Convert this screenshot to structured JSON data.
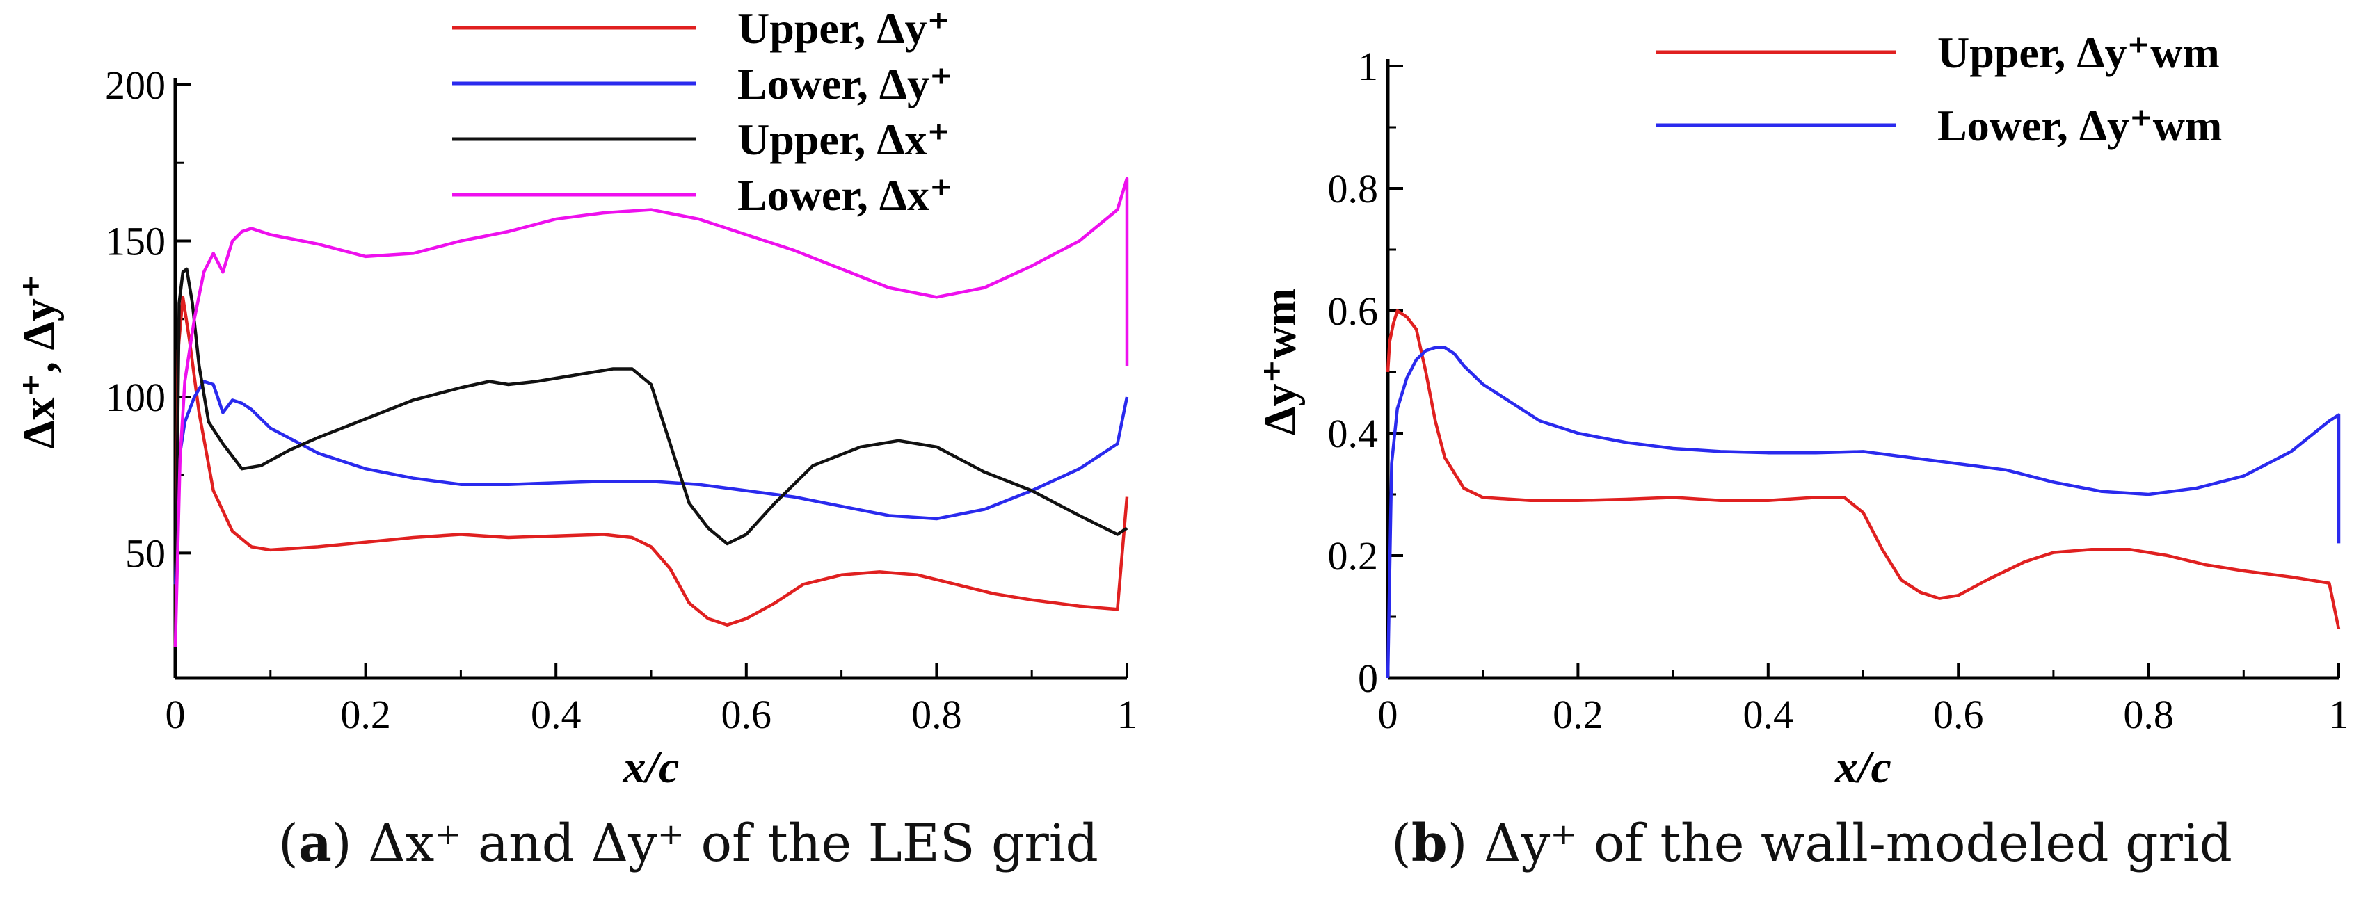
{
  "captions": {
    "a": {
      "tag": "a",
      "text": "Δx⁺ and Δy⁺ of the LES grid"
    },
    "b": {
      "tag": "b",
      "text": "Δy⁺ of the wall-modeled grid"
    }
  },
  "chart_data": [
    {
      "panel": "a",
      "type": "line",
      "xlabel": "x/c",
      "ylabel": "Δx⁺, Δy⁺",
      "xlim": [
        0,
        1
      ],
      "ylim": [
        10,
        200
      ],
      "xticks": [
        "0",
        "0.2",
        "0.4",
        "0.6",
        "0.8",
        "1"
      ],
      "xtick_values": [
        0,
        0.2,
        0.4,
        0.6,
        0.8,
        1
      ],
      "yticks": [
        "50",
        "100",
        "150",
        "200"
      ],
      "ytick_values": [
        50,
        100,
        150,
        200
      ],
      "legend_position": "top-center",
      "series": [
        {
          "name": "Upper, Δy⁺",
          "color": "#e02020",
          "x": [
            0,
            0.003,
            0.008,
            0.015,
            0.025,
            0.04,
            0.06,
            0.08,
            0.1,
            0.15,
            0.2,
            0.25,
            0.3,
            0.35,
            0.4,
            0.45,
            0.48,
            0.5,
            0.52,
            0.54,
            0.56,
            0.58,
            0.6,
            0.63,
            0.66,
            0.7,
            0.74,
            0.78,
            0.82,
            0.86,
            0.9,
            0.95,
            0.99,
            1.0
          ],
          "y": [
            20,
            115,
            132,
            118,
            95,
            70,
            57,
            52,
            51,
            52,
            53.5,
            55,
            56,
            55,
            55.5,
            56,
            55,
            52,
            45,
            34,
            29,
            27,
            29,
            34,
            40,
            43,
            44,
            43,
            40,
            37,
            35,
            33,
            32,
            68
          ]
        },
        {
          "name": "Lower, Δy⁺",
          "color": "#2a2aee",
          "x": [
            0,
            0.005,
            0.01,
            0.02,
            0.03,
            0.04,
            0.05,
            0.06,
            0.07,
            0.08,
            0.1,
            0.15,
            0.2,
            0.25,
            0.3,
            0.35,
            0.4,
            0.45,
            0.5,
            0.55,
            0.6,
            0.65,
            0.7,
            0.75,
            0.8,
            0.85,
            0.9,
            0.95,
            0.99,
            1.0
          ],
          "y": [
            40,
            82,
            92,
            100,
            105,
            104,
            95,
            99,
            98,
            96,
            90,
            82,
            77,
            74,
            72,
            72,
            72.5,
            73,
            73,
            72,
            70,
            68,
            65,
            62,
            61,
            64,
            70,
            77,
            85,
            100
          ]
        },
        {
          "name": "Upper, Δx⁺",
          "color": "#111111",
          "x": [
            0,
            0.004,
            0.008,
            0.012,
            0.018,
            0.025,
            0.035,
            0.05,
            0.07,
            0.09,
            0.12,
            0.15,
            0.2,
            0.25,
            0.3,
            0.33,
            0.35,
            0.38,
            0.42,
            0.46,
            0.48,
            0.5,
            0.52,
            0.54,
            0.56,
            0.58,
            0.6,
            0.63,
            0.67,
            0.72,
            0.76,
            0.8,
            0.85,
            0.9,
            0.95,
            0.99,
            1.0
          ],
          "y": [
            20,
            130,
            140,
            141,
            130,
            110,
            92,
            85,
            77,
            78,
            83,
            87,
            93,
            99,
            103,
            105,
            104,
            105,
            107,
            109,
            109,
            104,
            85,
            66,
            58,
            53,
            56,
            66,
            78,
            84,
            86,
            84,
            76,
            70,
            62,
            56,
            58
          ]
        },
        {
          "name": "Lower, Δx⁺",
          "color": "#ee10ee",
          "x": [
            0,
            0.005,
            0.01,
            0.02,
            0.03,
            0.04,
            0.05,
            0.055,
            0.06,
            0.07,
            0.08,
            0.1,
            0.15,
            0.2,
            0.25,
            0.3,
            0.35,
            0.4,
            0.45,
            0.5,
            0.55,
            0.6,
            0.65,
            0.7,
            0.75,
            0.8,
            0.85,
            0.9,
            0.95,
            0.99,
            1.0,
            1.0
          ],
          "y": [
            20,
            80,
            105,
            125,
            140,
            146,
            140,
            145,
            150,
            153,
            154,
            152,
            149,
            145,
            146,
            150,
            153,
            157,
            159,
            160,
            157,
            152,
            147,
            141,
            135,
            132,
            135,
            142,
            150,
            160,
            170,
            110
          ]
        }
      ]
    },
    {
      "panel": "b",
      "type": "line",
      "xlabel": "x/c",
      "ylabel": "Δy⁺wm",
      "xlim": [
        0,
        1
      ],
      "ylim": [
        0,
        1
      ],
      "xticks": [
        "0",
        "0.2",
        "0.4",
        "0.6",
        "0.8",
        "1"
      ],
      "xtick_values": [
        0,
        0.2,
        0.4,
        0.6,
        0.8,
        1
      ],
      "yticks": [
        "0",
        "0.2",
        "0.4",
        "0.6",
        "0.8",
        "1"
      ],
      "ytick_values": [
        0,
        0.2,
        0.4,
        0.6,
        0.8,
        1
      ],
      "legend_position": "top-right",
      "series": [
        {
          "name": "Upper, Δy⁺wm",
          "color": "#e02020",
          "x": [
            0,
            0.002,
            0.006,
            0.01,
            0.02,
            0.03,
            0.04,
            0.05,
            0.06,
            0.08,
            0.1,
            0.15,
            0.2,
            0.25,
            0.3,
            0.35,
            0.4,
            0.45,
            0.48,
            0.5,
            0.52,
            0.54,
            0.56,
            0.58,
            0.6,
            0.63,
            0.67,
            0.7,
            0.74,
            0.78,
            0.82,
            0.86,
            0.9,
            0.95,
            0.99,
            1.0
          ],
          "y": [
            0.5,
            0.55,
            0.58,
            0.6,
            0.59,
            0.57,
            0.5,
            0.42,
            0.36,
            0.31,
            0.295,
            0.29,
            0.29,
            0.292,
            0.295,
            0.29,
            0.29,
            0.295,
            0.295,
            0.27,
            0.21,
            0.16,
            0.14,
            0.13,
            0.135,
            0.16,
            0.19,
            0.205,
            0.21,
            0.21,
            0.2,
            0.185,
            0.175,
            0.165,
            0.155,
            0.08
          ]
        },
        {
          "name": "Lower, Δy⁺wm",
          "color": "#2a2aee",
          "x": [
            0,
            0.004,
            0.01,
            0.02,
            0.03,
            0.04,
            0.05,
            0.06,
            0.07,
            0.08,
            0.1,
            0.13,
            0.16,
            0.2,
            0.25,
            0.3,
            0.35,
            0.4,
            0.45,
            0.5,
            0.55,
            0.6,
            0.65,
            0.7,
            0.75,
            0.8,
            0.85,
            0.9,
            0.95,
            0.99,
            1.0,
            1.0
          ],
          "y": [
            0.0,
            0.35,
            0.44,
            0.49,
            0.52,
            0.535,
            0.54,
            0.54,
            0.53,
            0.51,
            0.48,
            0.45,
            0.42,
            0.4,
            0.385,
            0.375,
            0.37,
            0.368,
            0.368,
            0.37,
            0.36,
            0.35,
            0.34,
            0.32,
            0.305,
            0.3,
            0.31,
            0.33,
            0.37,
            0.42,
            0.43,
            0.22
          ]
        }
      ]
    }
  ]
}
